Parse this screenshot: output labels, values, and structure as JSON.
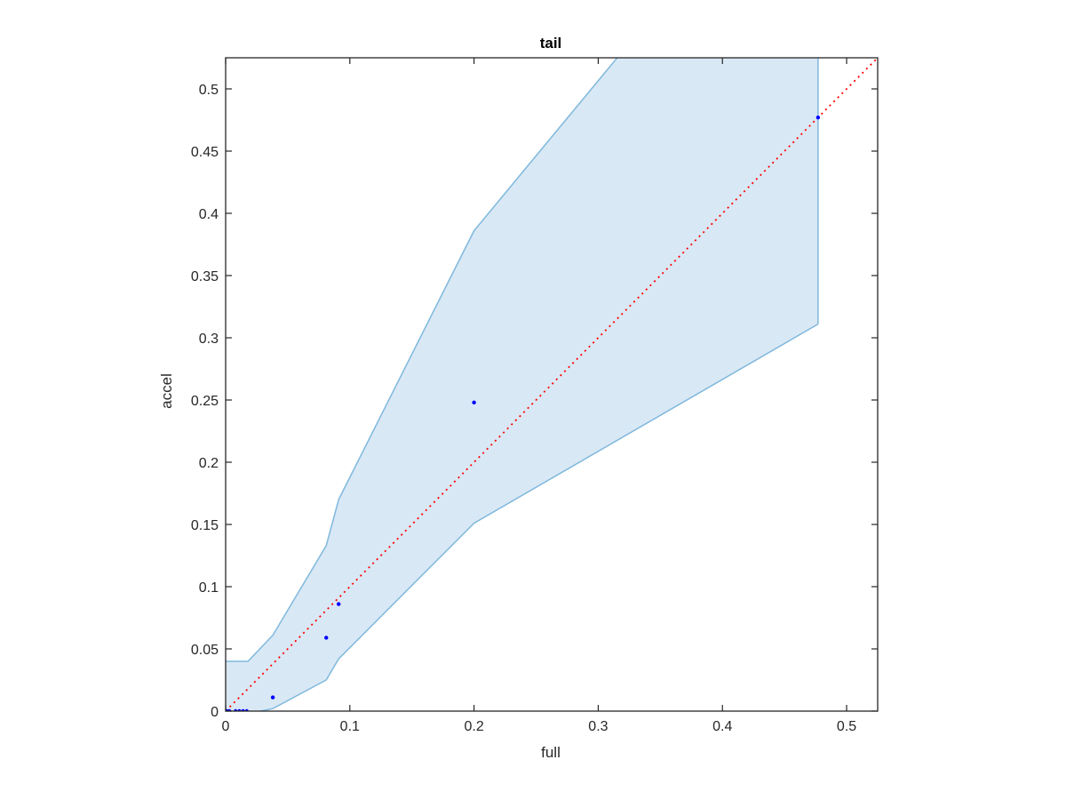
{
  "chart_data": {
    "type": "scatter",
    "title": "tail",
    "xlabel": "full",
    "ylabel": "accel",
    "xlim": [
      0,
      0.525
    ],
    "ylim": [
      0,
      0.525
    ],
    "grid": false,
    "x_ticks": [
      0,
      0.1,
      0.2,
      0.3,
      0.4,
      0.5
    ],
    "x_tick_labels": [
      "0",
      "0.1",
      "0.2",
      "0.3",
      "0.4",
      "0.5"
    ],
    "y_ticks": [
      0,
      0.05,
      0.1,
      0.15,
      0.2,
      0.25,
      0.3,
      0.35,
      0.4,
      0.45,
      0.5
    ],
    "y_tick_labels": [
      "0",
      "0.05",
      "0.1",
      "0.15",
      "0.2",
      "0.25",
      "0.3",
      "0.35",
      "0.4",
      "0.45",
      "0.5"
    ],
    "points": {
      "color": "#0000ff",
      "x": [
        0.001,
        0.003,
        0.008,
        0.011,
        0.014,
        0.017,
        0.038,
        0.081,
        0.091,
        0.2,
        0.477
      ],
      "y": [
        0,
        0,
        0,
        0,
        0,
        0,
        0.011,
        0.059,
        0.086,
        0.248,
        0.477
      ]
    },
    "band": {
      "fill_color": "#d9e8f5",
      "edge_color": "#7fb8dc",
      "upper": {
        "x": [
          0,
          0.018,
          0.038,
          0.081,
          0.091,
          0.2,
          0.477
        ],
        "y": [
          0.04,
          0.04,
          0.061,
          0.133,
          0.17,
          0.386,
          0.72
        ]
      },
      "lower": {
        "x": [
          0,
          0.018,
          0.038,
          0.081,
          0.091,
          0.2,
          0.477
        ],
        "y": [
          0,
          -0.002,
          0.002,
          0.025,
          0.042,
          0.151,
          0.311
        ]
      }
    },
    "reference_line": {
      "x": [
        0,
        0.525
      ],
      "y": [
        0,
        0.525
      ],
      "color": "#ff0000",
      "style": "dotted"
    }
  }
}
